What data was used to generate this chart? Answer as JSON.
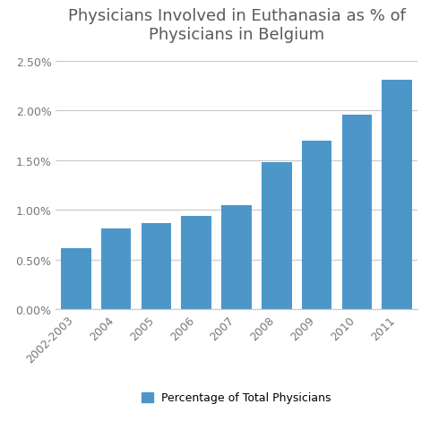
{
  "title": "Physicians Involved in Euthanasia as % of\nPhysicians in Belgium",
  "categories": [
    "2002-2003",
    "2004",
    "2005",
    "2006",
    "2007",
    "2008",
    "2009",
    "2010",
    "2011"
  ],
  "values": [
    0.0062,
    0.0081,
    0.0087,
    0.0094,
    0.0105,
    0.0148,
    0.017,
    0.0196,
    0.0231
  ],
  "bar_color": "#4d96c9",
  "ylim": [
    0,
    0.026
  ],
  "yticks": [
    0.0,
    0.005,
    0.01,
    0.015,
    0.02,
    0.025
  ],
  "ytick_labels": [
    "0.00%",
    "0.50%",
    "1.00%",
    "1.50%",
    "2.00%",
    "2.50%"
  ],
  "legend_label": "Percentage of Total Physicians",
  "legend_color": "#4d96c9",
  "background_color": "#ffffff",
  "grid_color": "#c8c8c8",
  "title_fontsize": 13,
  "tick_fontsize": 9,
  "legend_fontsize": 9
}
